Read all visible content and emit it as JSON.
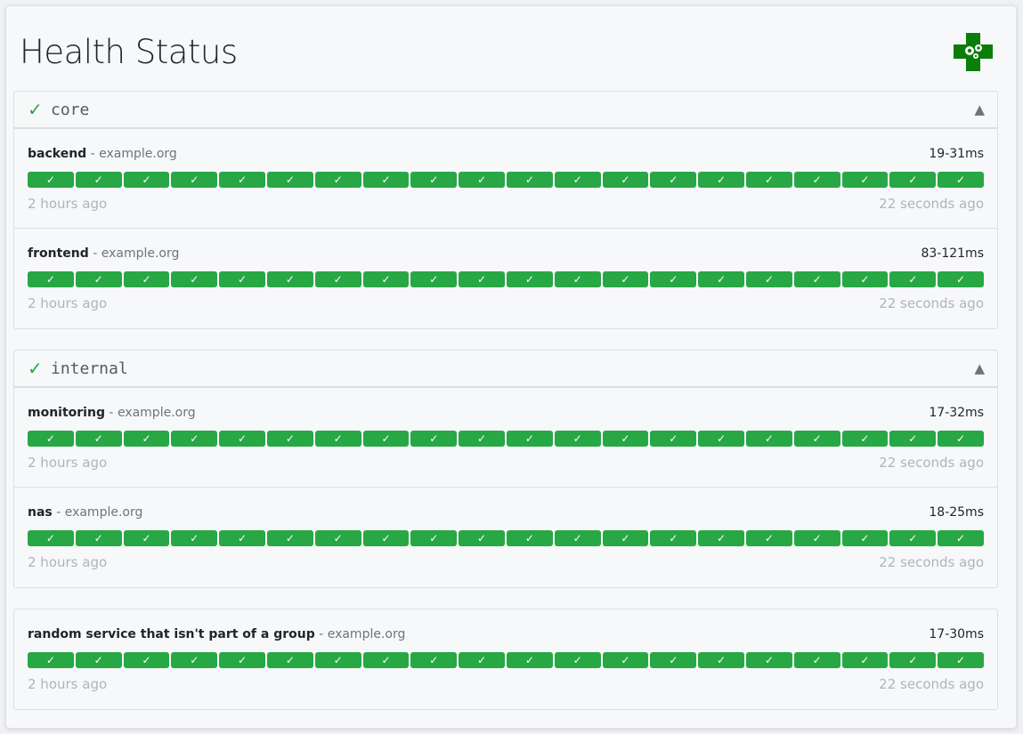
{
  "title": "Health Status",
  "colors": {
    "success": "#28a745",
    "accent_logo": "#0a7d0a"
  },
  "groups": [
    {
      "name": "core",
      "status_icon": "check-icon",
      "toggle_icon": "triangle-up-icon",
      "services": [
        {
          "name": "backend",
          "hostname": "example.org",
          "response_time": "19-31ms",
          "oldest": "2 hours ago",
          "newest": "22 seconds ago",
          "results": [
            "success",
            "success",
            "success",
            "success",
            "success",
            "success",
            "success",
            "success",
            "success",
            "success",
            "success",
            "success",
            "success",
            "success",
            "success",
            "success",
            "success",
            "success",
            "success",
            "success"
          ]
        },
        {
          "name": "frontend",
          "hostname": "example.org",
          "response_time": "83-121ms",
          "oldest": "2 hours ago",
          "newest": "22 seconds ago",
          "results": [
            "success",
            "success",
            "success",
            "success",
            "success",
            "success",
            "success",
            "success",
            "success",
            "success",
            "success",
            "success",
            "success",
            "success",
            "success",
            "success",
            "success",
            "success",
            "success",
            "success"
          ]
        }
      ]
    },
    {
      "name": "internal",
      "status_icon": "check-icon",
      "toggle_icon": "triangle-up-icon",
      "services": [
        {
          "name": "monitoring",
          "hostname": "example.org",
          "response_time": "17-32ms",
          "oldest": "2 hours ago",
          "newest": "22 seconds ago",
          "results": [
            "success",
            "success",
            "success",
            "success",
            "success",
            "success",
            "success",
            "success",
            "success",
            "success",
            "success",
            "success",
            "success",
            "success",
            "success",
            "success",
            "success",
            "success",
            "success",
            "success"
          ]
        },
        {
          "name": "nas",
          "hostname": "example.org",
          "response_time": "18-25ms",
          "oldest": "2 hours ago",
          "newest": "22 seconds ago",
          "results": [
            "success",
            "success",
            "success",
            "success",
            "success",
            "success",
            "success",
            "success",
            "success",
            "success",
            "success",
            "success",
            "success",
            "success",
            "success",
            "success",
            "success",
            "success",
            "success",
            "success"
          ]
        }
      ]
    },
    {
      "name": "",
      "services": [
        {
          "name": "random service that isn't part of a group",
          "hostname": "example.org",
          "response_time": "17-30ms",
          "oldest": "2 hours ago",
          "newest": "22 seconds ago",
          "results": [
            "success",
            "success",
            "success",
            "success",
            "success",
            "success",
            "success",
            "success",
            "success",
            "success",
            "success",
            "success",
            "success",
            "success",
            "success",
            "success",
            "success",
            "success",
            "success",
            "success"
          ]
        }
      ]
    }
  ],
  "symbols": {
    "check": "✓",
    "collapse": "▲",
    "separator": " - "
  }
}
